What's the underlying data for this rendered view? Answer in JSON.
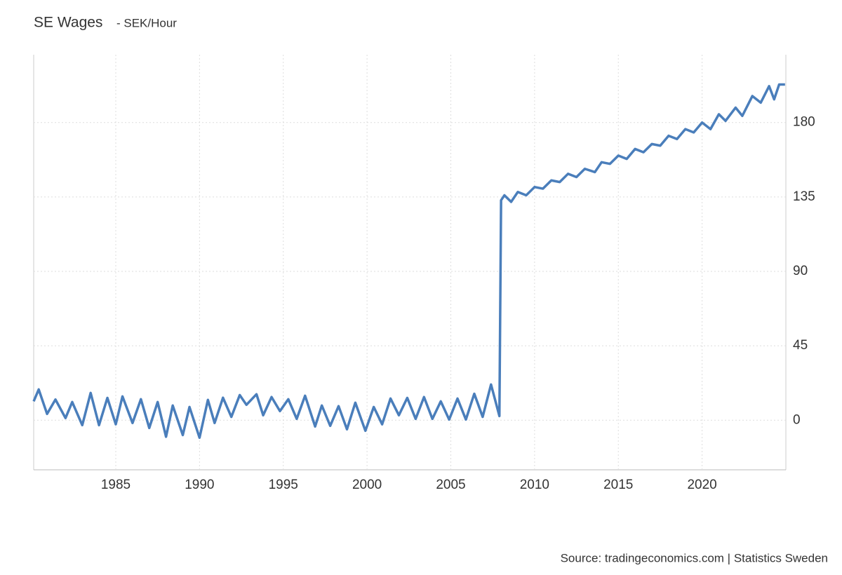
{
  "chart_data": {
    "type": "line",
    "title": "SE Wages",
    "subtitle": "- SEK/Hour",
    "source": "Source: tradingeconomics.com | Statistics Sweden",
    "xlim": [
      1980.1,
      2025
    ],
    "xticks": [
      1985,
      1990,
      1995,
      2000,
      2005,
      2010,
      2015,
      2020
    ],
    "ylim": [
      -30,
      221
    ],
    "yticks": [
      0,
      45,
      90,
      135,
      180
    ],
    "grid": true,
    "x": [
      1980.1,
      1980.4,
      1980.9,
      1981.4,
      1982.0,
      1982.4,
      1983.0,
      1983.5,
      1984.0,
      1984.5,
      1985.0,
      1985.4,
      1986.0,
      1986.5,
      1987.0,
      1987.5,
      1988.0,
      1988.4,
      1989.0,
      1989.4,
      1990.0,
      1990.5,
      1990.9,
      1991.4,
      1991.9,
      1992.4,
      1992.8,
      1993.4,
      1993.8,
      1994.3,
      1994.8,
      1995.3,
      1995.8,
      1996.3,
      1996.9,
      1997.3,
      1997.8,
      1998.3,
      1998.8,
      1999.3,
      1999.9,
      2000.4,
      2000.9,
      2001.4,
      2001.9,
      2002.4,
      2002.9,
      2003.4,
      2003.9,
      2004.4,
      2004.9,
      2005.4,
      2005.9,
      2006.4,
      2006.9,
      2007.4,
      2007.9,
      2008.0,
      2008.2,
      2008.6,
      2009.0,
      2009.5,
      2010.0,
      2010.5,
      2011.0,
      2011.5,
      2012.0,
      2012.5,
      2013.0,
      2013.6,
      2014.0,
      2014.5,
      2015.0,
      2015.5,
      2016.0,
      2016.5,
      2017.0,
      2017.5,
      2018.0,
      2018.5,
      2019.0,
      2019.5,
      2020.0,
      2020.5,
      2021.0,
      2021.4,
      2022.0,
      2022.4,
      2023.0,
      2023.5,
      2024.0,
      2024.3,
      2024.6,
      2024.95
    ],
    "series": [
      {
        "name": "SE Wages",
        "color": "#4a7ebb",
        "values": [
          11.4,
          18.6,
          3.8,
          12.5,
          1.3,
          11,
          -3,
          16.5,
          -3,
          13.5,
          -2.5,
          14.4,
          -1.7,
          12.7,
          -4.7,
          11,
          -10,
          8.9,
          -9,
          8,
          -10.6,
          12.3,
          -1.7,
          13.6,
          2,
          15.2,
          9.3,
          15.7,
          3,
          14,
          5.5,
          12.7,
          0.8,
          14.8,
          -3.8,
          8.9,
          -3.4,
          8.5,
          -5.5,
          10.6,
          -6.4,
          8,
          -2.5,
          13.1,
          3,
          13.5,
          0.8,
          14,
          0.8,
          11.4,
          0.4,
          13.1,
          0.4,
          16,
          2,
          21.6,
          2.5,
          133,
          136,
          132,
          138,
          136,
          141,
          140,
          145,
          144,
          149,
          147,
          152,
          150,
          156,
          155,
          160,
          158,
          164,
          162,
          167,
          166,
          172,
          170,
          176,
          174,
          180,
          176,
          185,
          181,
          189,
          184,
          196,
          192,
          202,
          194,
          203,
          203
        ]
      }
    ]
  }
}
